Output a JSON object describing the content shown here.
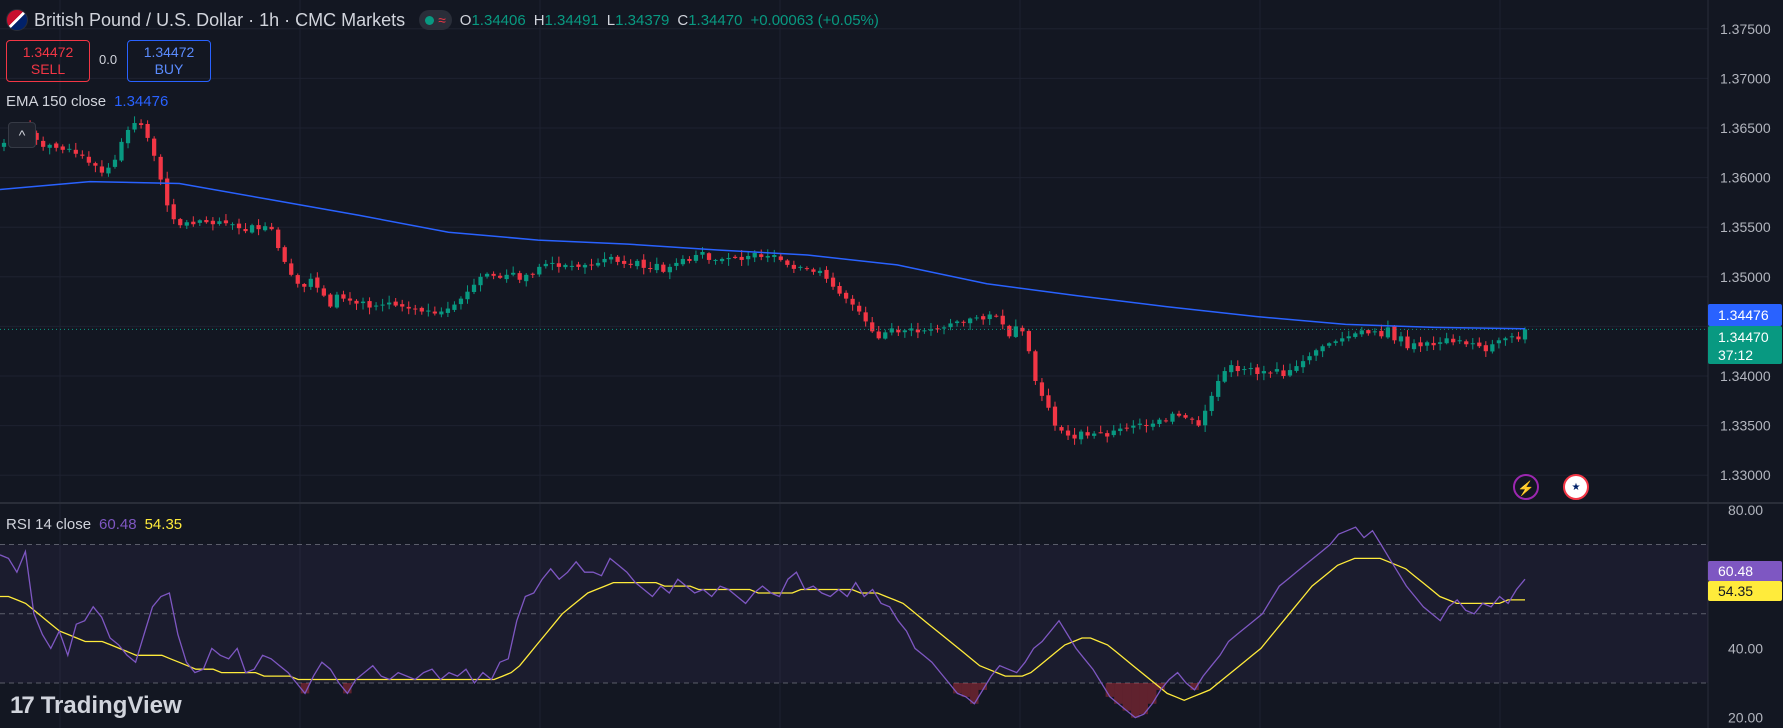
{
  "header": {
    "symbol": "British Pound / U.S. Dollar · 1h · CMC Markets",
    "ohlc": {
      "o_label": "O",
      "o": "1.34406",
      "h_label": "H",
      "h": "1.34491",
      "l_label": "L",
      "l": "1.34379",
      "c_label": "C",
      "c": "1.34470"
    },
    "change": "+0.00063 (+0.05%)"
  },
  "trade": {
    "sell_price": "1.34472",
    "sell_label": "SELL",
    "spread": "0.0",
    "buy_price": "1.34472",
    "buy_label": "BUY"
  },
  "ema_legend": {
    "label": "EMA 150 close",
    "value": "1.34476"
  },
  "rsi_legend": {
    "label": "RSI 14 close",
    "value": "60.48",
    "ma_value": "54.35"
  },
  "price_tags": {
    "ema": "1.34476",
    "price": "1.34470",
    "countdown": "37:12",
    "rsi": "60.48",
    "rsi_ma": "54.35"
  },
  "logo": {
    "mark": "17",
    "text": "TradingView"
  },
  "colors": {
    "up": "#089981",
    "down": "#f23645",
    "ema": "#2962ff",
    "rsi": "#7e57c2",
    "rsi_ma": "#ffeb3b",
    "bg": "#131722"
  },
  "icons": [
    "lightning-icon",
    "us-flag-icon",
    "chevron-up-icon"
  ],
  "chart_data": [
    {
      "type": "candlestick",
      "series_name": "GBP/USD 1h",
      "ylim": [
        1.3272,
        1.3779
      ],
      "y_ticks": [
        "1.37500",
        "1.37000",
        "1.36500",
        "1.36000",
        "1.35500",
        "1.35000",
        "1.34500",
        "1.34000",
        "1.33500",
        "1.33000"
      ],
      "y_tick_values": [
        1.375,
        1.37,
        1.365,
        1.36,
        1.355,
        1.35,
        1.345,
        1.34,
        1.335,
        1.33
      ],
      "close_path": [
        1.3635,
        1.3642,
        1.3637,
        1.3652,
        1.3645,
        1.3638,
        1.3631,
        1.3633,
        1.363,
        1.3628,
        1.3629,
        1.3624,
        1.3622,
        1.3615,
        1.3612,
        1.3605,
        1.361,
        1.3618,
        1.3636,
        1.3648,
        1.3655,
        1.3653,
        1.364,
        1.3622,
        1.3598,
        1.3572,
        1.3558,
        1.3552,
        1.3555,
        1.3553,
        1.3557,
        1.3555,
        1.3553,
        1.3556,
        1.3554,
        1.3553,
        1.3549,
        1.3546,
        1.3552,
        1.3548,
        1.3551,
        1.3548,
        1.3529,
        1.3515,
        1.3502,
        1.3493,
        1.349,
        1.3498,
        1.3489,
        1.3481,
        1.347,
        1.3482,
        1.3478,
        1.3476,
        1.3473,
        1.3475,
        1.3469,
        1.3471,
        1.3472,
        1.3474,
        1.3471,
        1.347,
        1.3468,
        1.3468,
        1.3465,
        1.3466,
        1.3463,
        1.3465,
        1.3468,
        1.3472,
        1.3478,
        1.3485,
        1.3492,
        1.35,
        1.3503,
        1.3501,
        1.3499,
        1.3502,
        1.3504,
        1.3497,
        1.3502,
        1.3503,
        1.351,
        1.3513,
        1.3514,
        1.351,
        1.3512,
        1.3511,
        1.351,
        1.3512,
        1.3512,
        1.3514,
        1.3518,
        1.352,
        1.3515,
        1.3513,
        1.3512,
        1.3516,
        1.3509,
        1.3508,
        1.3513,
        1.3505,
        1.351,
        1.3514,
        1.3518,
        1.3516,
        1.3522,
        1.3525,
        1.3517,
        1.3517,
        1.3518,
        1.3519,
        1.3519,
        1.3517,
        1.3521,
        1.3524,
        1.352,
        1.3521,
        1.3522,
        1.3517,
        1.3512,
        1.3508,
        1.351,
        1.3508,
        1.3505,
        1.3506,
        1.3498,
        1.349,
        1.3483,
        1.3478,
        1.3472,
        1.3465,
        1.3455,
        1.3445,
        1.3438,
        1.3444,
        1.3448,
        1.3444,
        1.3446,
        1.3448,
        1.3444,
        1.3446,
        1.3447,
        1.3447,
        1.3449,
        1.3453,
        1.3455,
        1.3454,
        1.3458,
        1.3459,
        1.3457,
        1.3462,
        1.346,
        1.3452,
        1.344,
        1.345,
        1.3445,
        1.3425,
        1.3395,
        1.338,
        1.3368,
        1.335,
        1.3345,
        1.334,
        1.3337,
        1.3344,
        1.334,
        1.3342,
        1.3343,
        1.3339,
        1.3345,
        1.3347,
        1.3347,
        1.335,
        1.3352,
        1.335,
        1.3352,
        1.3356,
        1.3355,
        1.3362,
        1.336,
        1.3358,
        1.3356,
        1.335,
        1.3365,
        1.338,
        1.3395,
        1.3405,
        1.3411,
        1.3405,
        1.3407,
        1.3408,
        1.3402,
        1.3405,
        1.3403,
        1.3407,
        1.34,
        1.3406,
        1.341,
        1.3415,
        1.342,
        1.3426,
        1.343,
        1.3433,
        1.3435,
        1.3438,
        1.344,
        1.3443,
        1.3446,
        1.3443,
        1.3445,
        1.344,
        1.3449,
        1.3436,
        1.344,
        1.3428,
        1.3433,
        1.343,
        1.3434,
        1.3431,
        1.3434,
        1.3438,
        1.3434,
        1.3436,
        1.3432,
        1.3433,
        1.343,
        1.3425,
        1.3432,
        1.3436,
        1.3438,
        1.344,
        1.3437,
        1.3447
      ],
      "ema150_path": [
        1.3588,
        1.3596,
        1.3594,
        1.3578,
        1.3562,
        1.3545,
        1.3537,
        1.3533,
        1.3527,
        1.3522,
        1.3512,
        1.3493,
        1.3481,
        1.347,
        1.346,
        1.3452,
        1.3449,
        1.34476
      ],
      "last_price": 1.3447
    },
    {
      "type": "line",
      "title": "RSI 14 close",
      "ylim": [
        17,
        82
      ],
      "y_ticks": [
        "80.00",
        "40.00",
        "20.00"
      ],
      "y_tick_values": [
        80,
        40,
        20
      ],
      "bands": [
        30,
        50,
        70
      ],
      "series": [
        {
          "name": "RSI",
          "values": [
            67,
            66,
            62,
            68,
            50,
            44,
            40,
            45,
            38,
            47,
            48,
            52,
            49,
            43,
            41,
            38,
            36,
            44,
            52,
            55,
            56,
            44,
            36,
            33,
            34,
            40,
            38,
            37,
            40,
            33,
            34,
            38,
            37,
            35,
            33,
            30,
            27,
            32,
            36,
            34,
            30,
            27,
            31,
            33,
            35,
            32,
            31,
            33,
            32,
            31,
            33,
            34,
            31,
            33,
            32,
            34,
            30,
            33,
            31,
            36,
            37,
            48,
            55,
            56,
            60,
            63,
            60,
            62,
            65,
            62,
            62,
            61,
            66,
            64,
            62,
            59,
            57,
            55,
            58,
            56,
            60,
            58,
            56,
            57,
            55,
            58,
            57,
            55,
            53,
            56,
            58,
            56,
            55,
            60,
            62,
            57,
            58,
            56,
            55,
            57,
            55,
            59,
            55,
            57,
            53,
            52,
            48,
            45,
            40,
            38,
            36,
            33,
            30,
            27,
            26,
            24,
            28,
            32,
            35,
            34,
            33,
            36,
            40,
            42,
            45,
            48,
            44,
            40,
            37,
            34,
            30,
            26,
            24,
            22,
            20,
            21,
            24,
            28,
            31,
            33,
            30,
            28,
            32,
            35,
            38,
            42,
            44,
            46,
            48,
            50,
            54,
            58,
            60,
            62,
            64,
            66,
            68,
            70,
            73,
            74,
            75,
            72,
            74,
            70,
            66,
            62,
            58,
            55,
            52,
            50,
            48,
            52,
            54,
            51,
            50,
            53,
            52,
            55,
            53,
            57,
            60
          ]
        },
        {
          "name": "RSI MA",
          "values": [
            55,
            55,
            54,
            53,
            51,
            49,
            47,
            45,
            44,
            43,
            42,
            42,
            42,
            41,
            40,
            39,
            38,
            38,
            38,
            38,
            37,
            36,
            35,
            34,
            34,
            34,
            33,
            33,
            33,
            33,
            33,
            32,
            32,
            32,
            32,
            31,
            31,
            31,
            31,
            31,
            31,
            31,
            31,
            31,
            31,
            31,
            31,
            31,
            31,
            31,
            31,
            31,
            31,
            31,
            31,
            31,
            31,
            31,
            31,
            32,
            33,
            35,
            38,
            41,
            44,
            47,
            50,
            52,
            54,
            56,
            57,
            58,
            59,
            59,
            59,
            59,
            59,
            59,
            58,
            58,
            58,
            58,
            57,
            57,
            57,
            57,
            57,
            57,
            57,
            56,
            56,
            56,
            56,
            56,
            57,
            57,
            57,
            57,
            57,
            57,
            57,
            56,
            56,
            56,
            55,
            54,
            53,
            51,
            49,
            47,
            45,
            43,
            41,
            39,
            37,
            35,
            34,
            33,
            32,
            32,
            32,
            33,
            35,
            37,
            39,
            41,
            42,
            43,
            43,
            42,
            41,
            39,
            37,
            35,
            33,
            31,
            29,
            27,
            26,
            25,
            26,
            27,
            28,
            30,
            32,
            34,
            36,
            38,
            40,
            43,
            46,
            49,
            52,
            55,
            58,
            60,
            62,
            64,
            65,
            66,
            66,
            66,
            66,
            65,
            64,
            63,
            61,
            59,
            57,
            55,
            54,
            53,
            53,
            53,
            53,
            53,
            53,
            54,
            54,
            54
          ]
        }
      ]
    }
  ]
}
